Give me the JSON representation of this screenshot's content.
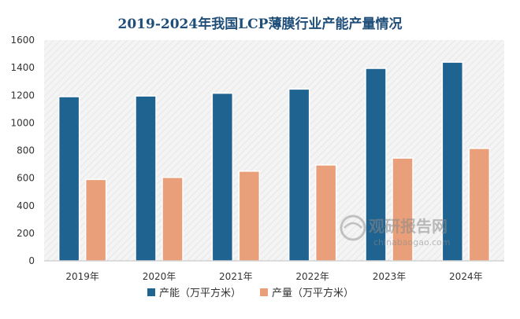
{
  "chart_data": {
    "type": "bar",
    "title": "2019-2024年我国LCP薄膜行业产能产量情况",
    "categories": [
      "2019年",
      "2020年",
      "2021年",
      "2022年",
      "2023年",
      "2024年"
    ],
    "series": [
      {
        "name": "产能（万平方米）",
        "values": [
          1190,
          1195,
          1215,
          1245,
          1395,
          1440
        ],
        "color": "#1f6391"
      },
      {
        "name": "产量（万平方米）",
        "values": [
          590,
          605,
          650,
          695,
          745,
          815
        ],
        "color": "#e9a07a"
      }
    ],
    "ylim": [
      0,
      1600
    ],
    "yticks": [
      0,
      200,
      400,
      600,
      800,
      1000,
      1200,
      1400,
      1600
    ],
    "xlabel": "",
    "ylabel": "",
    "legend": "bottom-center",
    "grid": false
  },
  "watermark": {
    "brand": "观研报告网",
    "url": "chinabaogao.com"
  },
  "colors": {
    "title": "#1f4e79",
    "axis_text": "#333333",
    "plot_bg": "#f2f2f2"
  }
}
